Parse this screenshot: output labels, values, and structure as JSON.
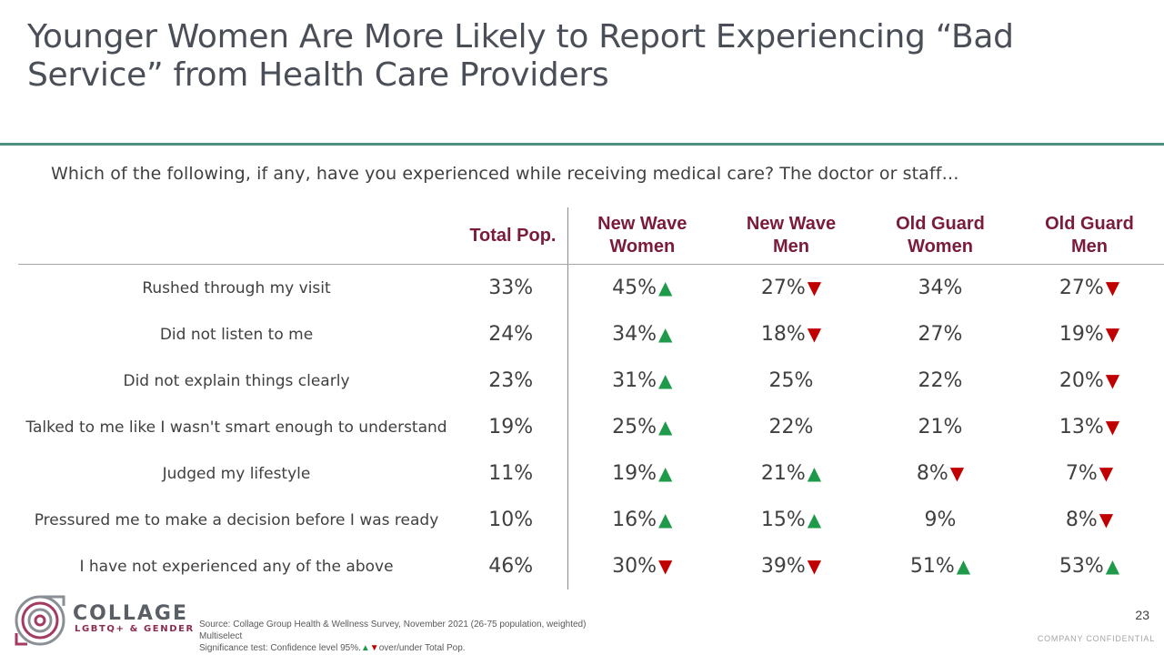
{
  "header": {
    "title": "Younger Women Are More Likely to Report Experiencing “Bad Service” from Health Care Providers",
    "question": "Which of the following, if any, have you experienced while receiving medical care? The doctor or staff…"
  },
  "table": {
    "columns": [
      "Total Pop.",
      "New Wave Women",
      "New Wave Men",
      "Old Guard Women",
      "Old Guard Men"
    ],
    "rows": [
      {
        "label": "Rushed through my visit",
        "total": "33%",
        "cells": [
          {
            "v": "45%",
            "dir": "up",
            "glyph": "▲"
          },
          {
            "v": "27%",
            "dir": "down",
            "glyph": "▼"
          },
          {
            "v": "34%",
            "dir": "",
            "glyph": ""
          },
          {
            "v": "27%",
            "dir": "down",
            "glyph": "▼"
          }
        ]
      },
      {
        "label": "Did not listen to me",
        "total": "24%",
        "cells": [
          {
            "v": "34%",
            "dir": "up",
            "glyph": "▲"
          },
          {
            "v": "18%",
            "dir": "down",
            "glyph": "▼"
          },
          {
            "v": "27%",
            "dir": "",
            "glyph": ""
          },
          {
            "v": "19%",
            "dir": "down",
            "glyph": "▼"
          }
        ]
      },
      {
        "label": "Did not explain things clearly",
        "total": "23%",
        "cells": [
          {
            "v": "31%",
            "dir": "up",
            "glyph": "▲"
          },
          {
            "v": "25%",
            "dir": "",
            "glyph": ""
          },
          {
            "v": "22%",
            "dir": "",
            "glyph": ""
          },
          {
            "v": "20%",
            "dir": "down",
            "glyph": "▼"
          }
        ]
      },
      {
        "label": "Talked to me like I wasn't smart enough to understand",
        "total": "19%",
        "cells": [
          {
            "v": "25%",
            "dir": "up",
            "glyph": "▲"
          },
          {
            "v": "22%",
            "dir": "",
            "glyph": ""
          },
          {
            "v": "21%",
            "dir": "",
            "glyph": ""
          },
          {
            "v": "13%",
            "dir": "down",
            "glyph": "▼"
          }
        ]
      },
      {
        "label": "Judged my lifestyle",
        "total": "11%",
        "cells": [
          {
            "v": "19%",
            "dir": "up",
            "glyph": "▲"
          },
          {
            "v": "21%",
            "dir": "up",
            "glyph": "▲"
          },
          {
            "v": "8%",
            "dir": "down",
            "glyph": "▼"
          },
          {
            "v": "7%",
            "dir": "down",
            "glyph": "▼"
          }
        ]
      },
      {
        "label": "Pressured me to make a decision before I was ready",
        "total": "10%",
        "cells": [
          {
            "v": "16%",
            "dir": "up",
            "glyph": "▲"
          },
          {
            "v": "15%",
            "dir": "up",
            "glyph": "▲"
          },
          {
            "v": "9%",
            "dir": "",
            "glyph": ""
          },
          {
            "v": "8%",
            "dir": "down",
            "glyph": "▼"
          }
        ]
      },
      {
        "label": "I have not experienced any of the above",
        "total": "46%",
        "cells": [
          {
            "v": "30%",
            "dir": "down",
            "glyph": "▼"
          },
          {
            "v": "39%",
            "dir": "down",
            "glyph": "▼"
          },
          {
            "v": "51%",
            "dir": "up",
            "glyph": "▲"
          },
          {
            "v": "53%",
            "dir": "up",
            "glyph": "▲"
          }
        ]
      }
    ]
  },
  "colors": {
    "header_text": "#7b1b3b",
    "up_arrow": "#1e9a4a",
    "down_arrow": "#c00000",
    "rule": "#4e8f7e"
  },
  "footer": {
    "logo_name": "COLLAGE",
    "logo_sub": "LGBTQ+ & GENDER",
    "source_line1": "Source: Collage Group Health & Wellness Survey, November 2021 (26-75 population, weighted)",
    "source_line2": "Multiselect",
    "source_line3_prefix": "Significance test: Confidence level 95%.",
    "source_up": "▲",
    "source_down": "▼",
    "source_line3_suffix": "over/under Total Pop.",
    "page_number": "23",
    "confidential": "COMPANY CONFIDENTIAL"
  }
}
